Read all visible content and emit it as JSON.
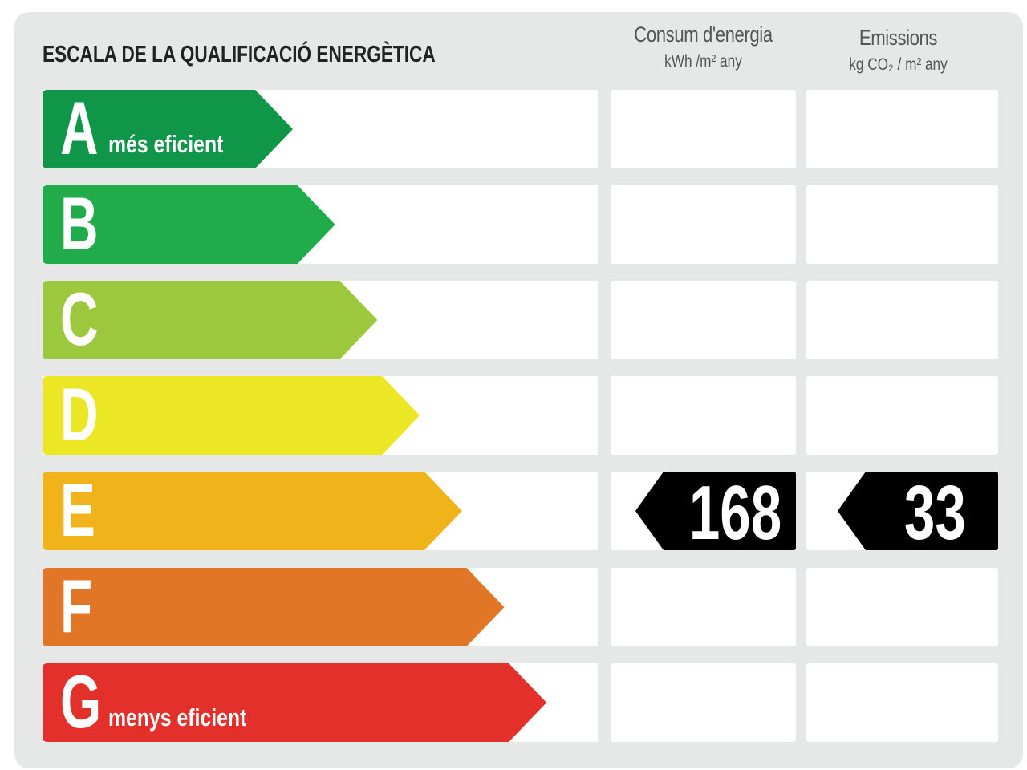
{
  "title": "ESCALA DE LA QUALIFICACIÓ ENERGÈTICA",
  "columns": [
    {
      "label": "Consum d'energia",
      "unit": "kWh /m² any"
    },
    {
      "label": "Emissions",
      "unit": "kg CO₂ / m² any"
    }
  ],
  "ratings": [
    {
      "letter": "A",
      "caption": "més eficient",
      "color": "#0f9648"
    },
    {
      "letter": "B",
      "caption": "",
      "color": "#21ac4b"
    },
    {
      "letter": "C",
      "caption": "",
      "color": "#9bc83c"
    },
    {
      "letter": "D",
      "caption": "",
      "color": "#ebe724"
    },
    {
      "letter": "E",
      "caption": "",
      "color": "#f0b41a"
    },
    {
      "letter": "F",
      "caption": "",
      "color": "#e07626"
    },
    {
      "letter": "G",
      "caption": "menys eficient",
      "color": "#e3302b"
    }
  ],
  "result": {
    "rating": "E",
    "energy_consumption": "168",
    "emissions": "33"
  }
}
